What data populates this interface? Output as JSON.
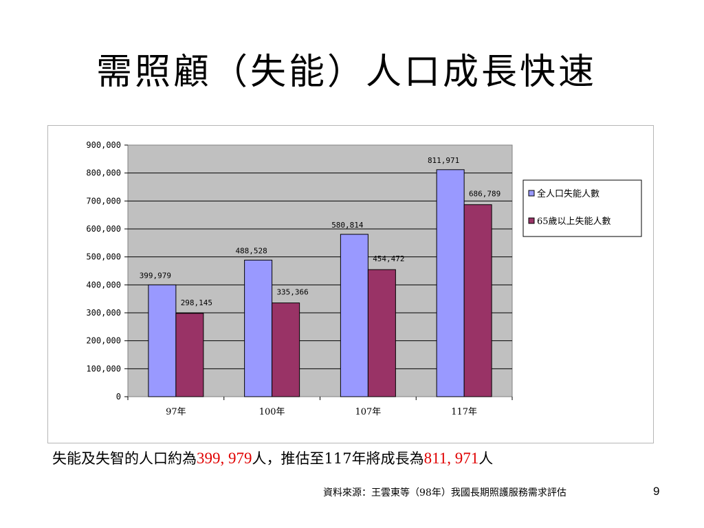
{
  "slide": {
    "title": "需照顧（失能）人口成長快速",
    "caption_prefix": "失能及失智的人口約為",
    "caption_value1": "399, 979",
    "caption_middle": "人，推估至117年將成長為",
    "caption_value2": "811, 971",
    "caption_suffix": "人",
    "source": "資料來源：王雲東等（98年）我國長期照護服務需求評估",
    "page_number": "9"
  },
  "colors": {
    "series1": "#9999ff",
    "series2": "#993366",
    "plot_bg": "#c0c0c0",
    "highlight": "#e00000"
  },
  "chart_data": {
    "type": "bar",
    "categories": [
      "97年",
      "100年",
      "107年",
      "117年"
    ],
    "series": [
      {
        "name": "全人口失能人數",
        "values": [
          399979,
          488528,
          580814,
          811971
        ],
        "labels": [
          "399,979",
          "488,528",
          "580,814",
          "811,971"
        ]
      },
      {
        "name": "65歲以上失能人數",
        "values": [
          298145,
          335366,
          454472,
          686789
        ],
        "labels": [
          "298,145",
          "335,366",
          "454,472",
          "686,789"
        ]
      }
    ],
    "ylim": [
      0,
      900000
    ],
    "yticks": [
      0,
      100000,
      200000,
      300000,
      400000,
      500000,
      600000,
      700000,
      800000,
      900000
    ],
    "ytick_labels": [
      "0",
      "100,000",
      "200,000",
      "300,000",
      "400,000",
      "500,000",
      "600,000",
      "700,000",
      "800,000",
      "900,000"
    ],
    "grid": true,
    "legend_position": "right"
  }
}
